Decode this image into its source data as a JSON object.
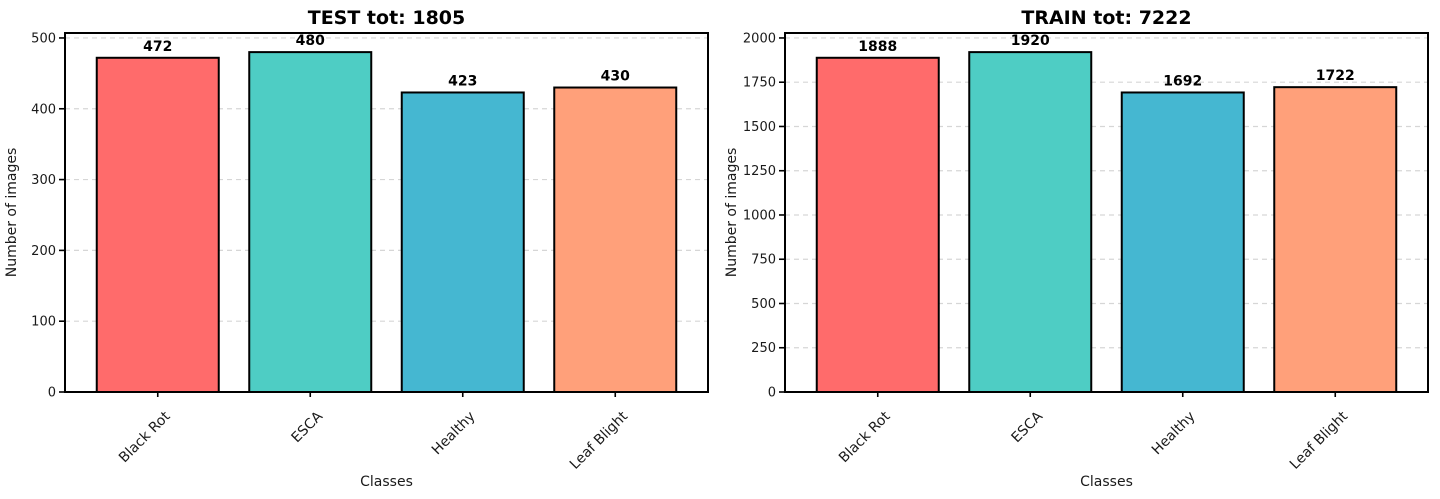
{
  "figure": {
    "background": "#ffffff",
    "text_color": "#000000",
    "grid_color": "#cfcfcf",
    "bar_edge_color": "#000000"
  },
  "chart_data": [
    {
      "type": "bar",
      "title": "TEST tot: 1805",
      "total": 1805,
      "xlabel": "Classes",
      "ylabel": "Number of images",
      "categories": [
        "Black Rot",
        "ESCA",
        "Healthy",
        "Leaf Blight"
      ],
      "values": [
        472,
        480,
        423,
        430
      ],
      "bar_labels": [
        "472",
        "480",
        "423",
        "430"
      ],
      "bar_colors": [
        "#FF6B6B",
        "#4ECDC4",
        "#45B7D1",
        "#FFA07A"
      ],
      "yticks": [
        0,
        100,
        200,
        300,
        400,
        500
      ],
      "ylim": [
        0,
        500
      ],
      "grid": "y-dashed",
      "legend": "none"
    },
    {
      "type": "bar",
      "title": "TRAIN tot: 7222",
      "total": 7222,
      "xlabel": "Classes",
      "ylabel": "Number of images",
      "categories": [
        "Black Rot",
        "ESCA",
        "Healthy",
        "Leaf Blight"
      ],
      "values": [
        1888,
        1920,
        1692,
        1722
      ],
      "bar_labels": [
        "1888",
        "1920",
        "1692",
        "1722"
      ],
      "bar_colors": [
        "#FF6B6B",
        "#4ECDC4",
        "#45B7D1",
        "#FFA07A"
      ],
      "yticks": [
        0,
        250,
        500,
        750,
        1000,
        1250,
        1500,
        1750,
        2000
      ],
      "ylim": [
        0,
        2000
      ],
      "grid": "y-dashed",
      "legend": "none"
    }
  ]
}
